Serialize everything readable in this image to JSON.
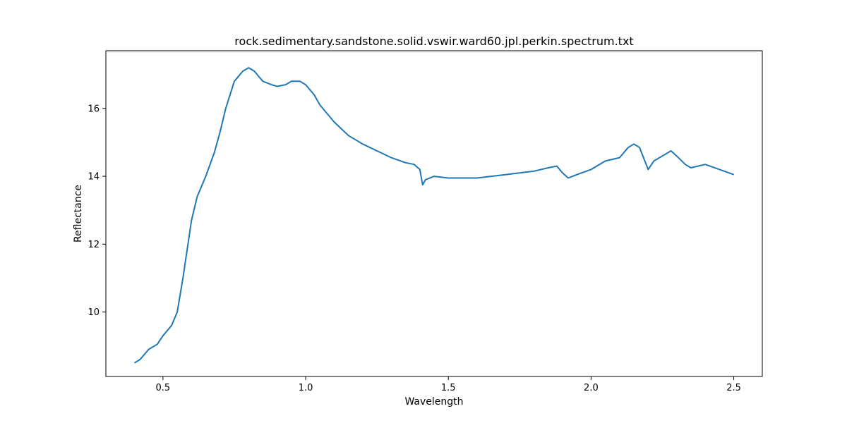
{
  "chart_data": {
    "type": "line",
    "title": "rock.sedimentary.sandstone.solid.vswir.ward60.jpl.perkin.spectrum.txt",
    "xlabel": "Wavelength",
    "ylabel": "Reflectance",
    "xlim": [
      0.3,
      2.6
    ],
    "ylim": [
      8.1,
      17.7
    ],
    "xticks": [
      0.5,
      1.0,
      1.5,
      2.0,
      2.5
    ],
    "xtick_labels": [
      "0.5",
      "1.0",
      "1.5",
      "2.0",
      "2.5"
    ],
    "yticks": [
      10,
      12,
      14,
      16
    ],
    "ytick_labels": [
      "10",
      "12",
      "14",
      "16"
    ],
    "grid": false,
    "legend": "none",
    "series": [
      {
        "color": "#1f77b4",
        "x": [
          0.4,
          0.42,
          0.45,
          0.48,
          0.5,
          0.53,
          0.55,
          0.57,
          0.6,
          0.62,
          0.65,
          0.68,
          0.7,
          0.72,
          0.75,
          0.78,
          0.8,
          0.82,
          0.84,
          0.85,
          0.88,
          0.9,
          0.93,
          0.95,
          0.98,
          1.0,
          1.03,
          1.05,
          1.08,
          1.1,
          1.15,
          1.2,
          1.25,
          1.3,
          1.35,
          1.38,
          1.4,
          1.41,
          1.42,
          1.45,
          1.5,
          1.6,
          1.7,
          1.75,
          1.8,
          1.85,
          1.88,
          1.9,
          1.92,
          1.95,
          2.0,
          2.05,
          2.1,
          2.13,
          2.15,
          2.17,
          2.2,
          2.22,
          2.25,
          2.28,
          2.3,
          2.33,
          2.35,
          2.4,
          2.45,
          2.5
        ],
        "y": [
          8.5,
          8.6,
          8.9,
          9.05,
          9.3,
          9.6,
          10.0,
          11.0,
          12.7,
          13.4,
          14.0,
          14.7,
          15.3,
          16.0,
          16.8,
          17.1,
          17.2,
          17.1,
          16.9,
          16.8,
          16.7,
          16.65,
          16.7,
          16.8,
          16.8,
          16.7,
          16.4,
          16.1,
          15.8,
          15.6,
          15.2,
          14.95,
          14.75,
          14.55,
          14.4,
          14.35,
          14.2,
          13.75,
          13.9,
          14.0,
          13.95,
          13.95,
          14.05,
          14.1,
          14.15,
          14.25,
          14.3,
          14.1,
          13.95,
          14.05,
          14.2,
          14.45,
          14.55,
          14.85,
          14.95,
          14.85,
          14.2,
          14.45,
          14.6,
          14.75,
          14.6,
          14.35,
          14.25,
          14.35,
          14.2,
          14.05
        ]
      }
    ]
  }
}
